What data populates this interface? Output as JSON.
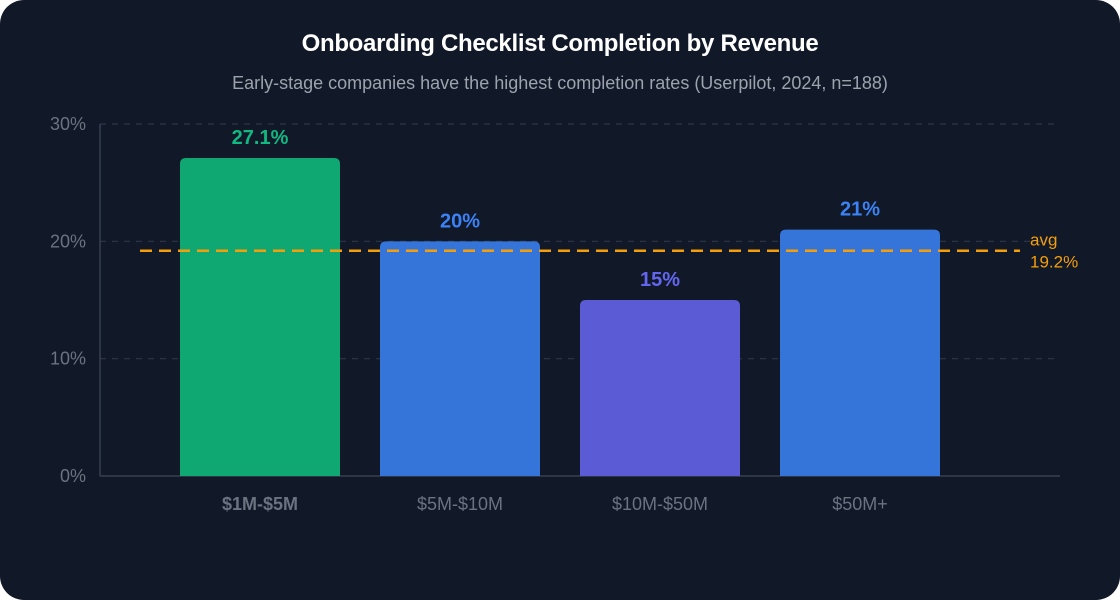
{
  "chart_data": {
    "type": "bar",
    "title": "Onboarding Checklist Completion by Revenue",
    "subtitle": "Early-stage companies have the highest completion rates (Userpilot, 2024, n=188)",
    "categories": [
      "$1M-$5M",
      "$5M-$10M",
      "$10M-$50M",
      "$50M+"
    ],
    "values": [
      27.1,
      20,
      15,
      21
    ],
    "value_labels": [
      "27.1%",
      "20%",
      "15%",
      "21%"
    ],
    "bar_colors": [
      "#10a872",
      "#3575d9",
      "#5b5bd6",
      "#3575d9"
    ],
    "label_colors": [
      "#10b981",
      "#3b82f6",
      "#6366f1",
      "#3b82f6"
    ],
    "highlight_category_index": 0,
    "ylim": [
      0,
      30
    ],
    "yticks": [
      0,
      10,
      20,
      30
    ],
    "ytick_labels": [
      "0%",
      "10%",
      "20%",
      "30%"
    ],
    "reference_line": {
      "value": 19.2,
      "label": "avg",
      "value_label": "19.2%",
      "color": "#f59e0b"
    },
    "grid": true,
    "xlabel": "",
    "ylabel": ""
  },
  "colors": {
    "background": "#111827",
    "axis": "#374151",
    "grid": "#2d3748",
    "muted_text": "#6b7280"
  }
}
